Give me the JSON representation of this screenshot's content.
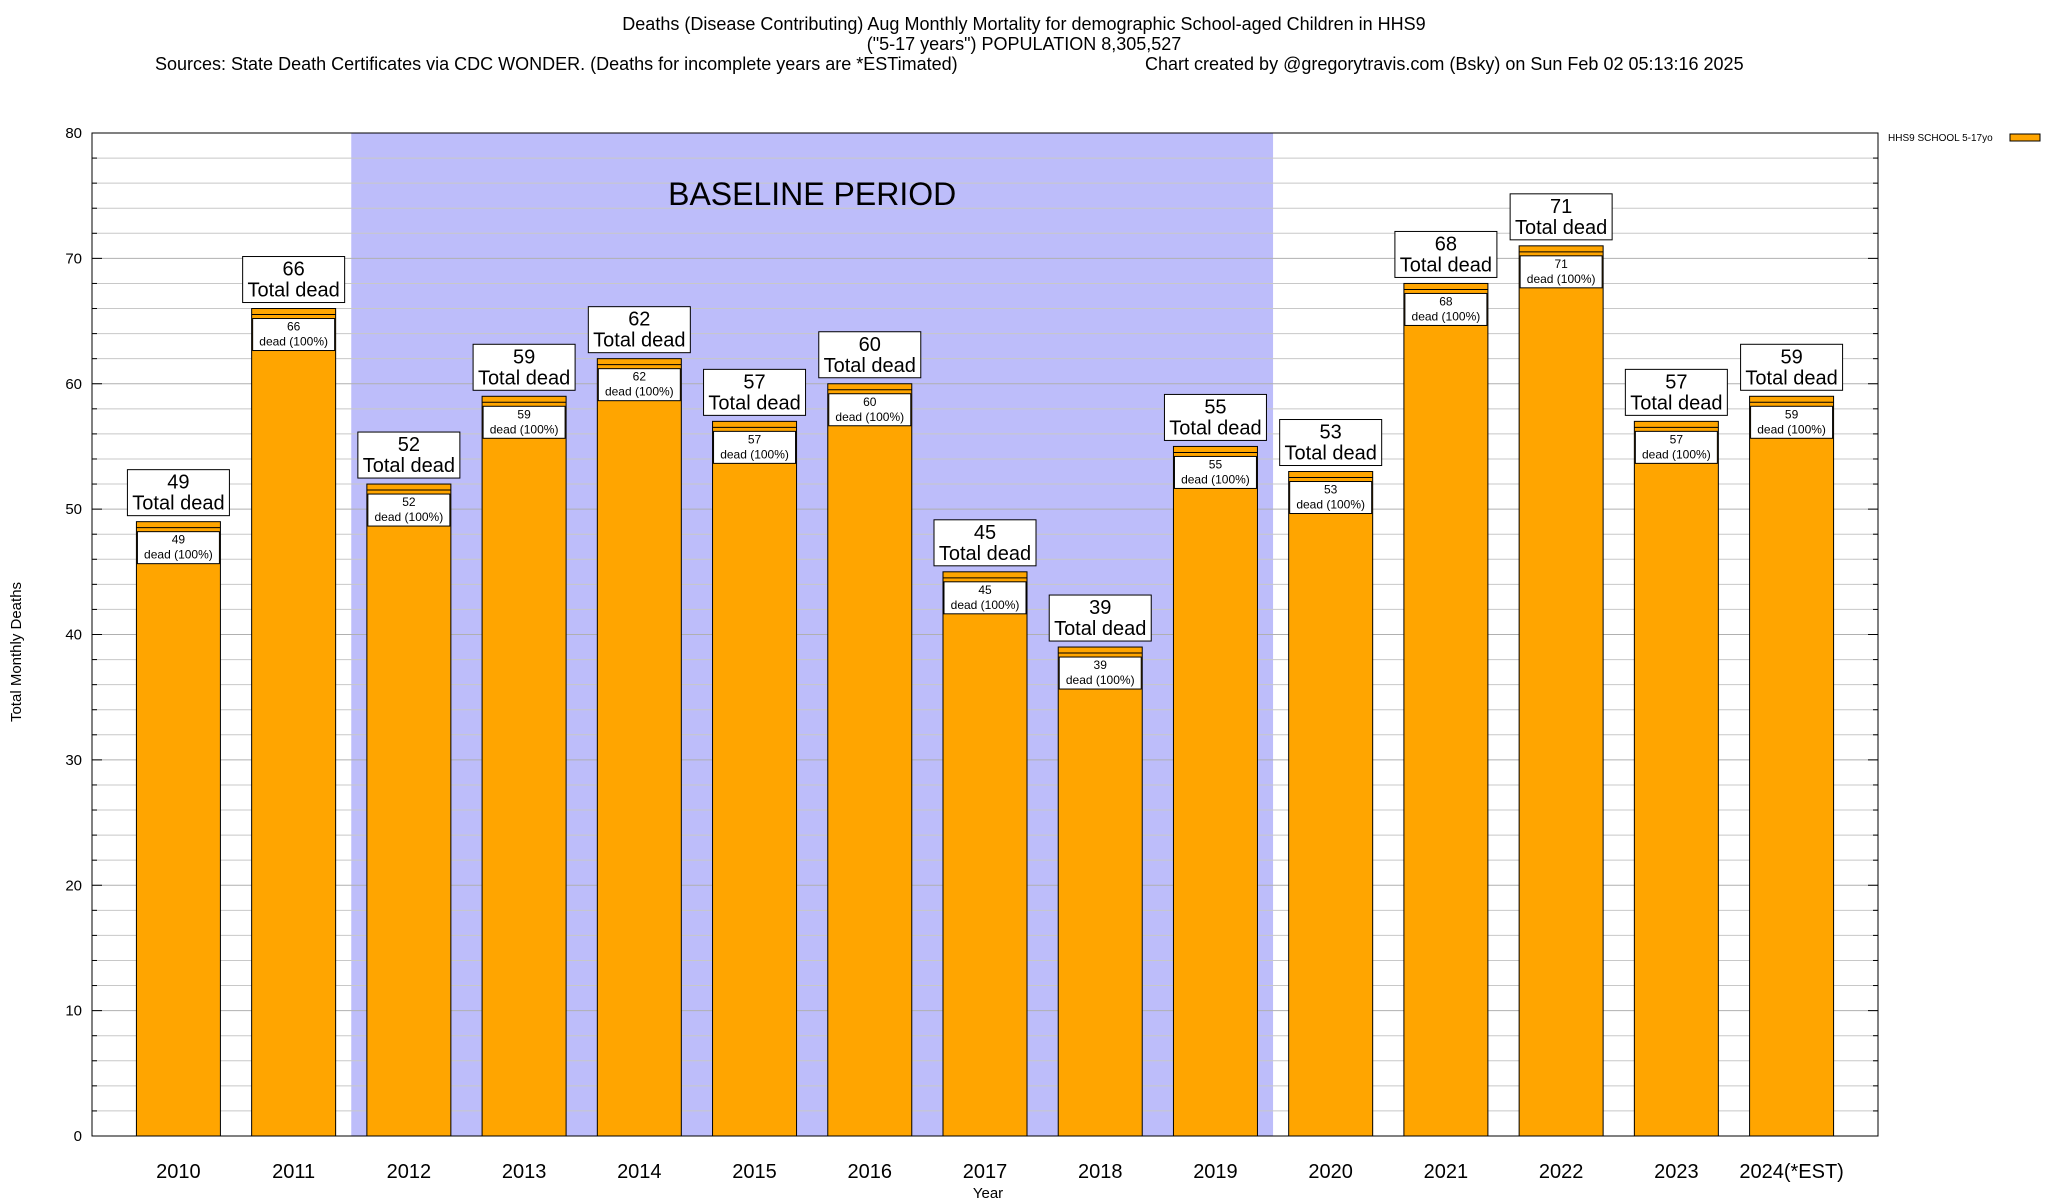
{
  "title": {
    "line1": "Deaths (Disease Contributing) Aug Monthly Mortality for demographic School-aged Children in HHS9",
    "line2": "(\"5-17 years\") POPULATION 8,305,527",
    "line3_left": "Sources: State Death Certificates via CDC WONDER. (Deaths for incomplete years are *ESTimated)",
    "line3_right": "Chart created by @gregorytravis.com (Bsky) on Sun Feb 02 05:13:16 2025"
  },
  "chart_data": {
    "type": "bar",
    "title": "Deaths (Disease Contributing) Aug Monthly Mortality for demographic School-aged Children in HHS9",
    "xlabel": "Year",
    "ylabel": "Total Monthly Deaths",
    "ylim": [
      0,
      80
    ],
    "yticks": [
      "0",
      "10",
      "20",
      "30",
      "40",
      "50",
      "60",
      "70",
      "80"
    ],
    "grid": true,
    "legend_position": "top-right",
    "categories": [
      "2010",
      "2011",
      "2012",
      "2013",
      "2014",
      "2015",
      "2016",
      "2017",
      "2018",
      "2019",
      "2020",
      "2021",
      "2022",
      "2023",
      "2024(*EST)"
    ],
    "series": [
      {
        "name": "HHS9 SCHOOL 5-17yo",
        "color": "#FFA500",
        "values": [
          49,
          66,
          52,
          59,
          62,
          57,
          60,
          45,
          39,
          55,
          53,
          68,
          71,
          57,
          59
        ]
      }
    ],
    "total_labels": [
      "49",
      "66",
      "52",
      "59",
      "62",
      "57",
      "60",
      "45",
      "39",
      "55",
      "53",
      "68",
      "71",
      "57",
      "59"
    ],
    "total_sublabel": "Total dead",
    "inner_labels": [
      "49",
      "66",
      "52",
      "59",
      "62",
      "57",
      "60",
      "45",
      "39",
      "55",
      "53",
      "68",
      "71",
      "57",
      "59"
    ],
    "inner_sublabel": "dead (100%)",
    "baseline": {
      "label": "BASELINE PERIOD",
      "start": "2012",
      "end": "2019",
      "color": "#BDBDFA"
    }
  }
}
